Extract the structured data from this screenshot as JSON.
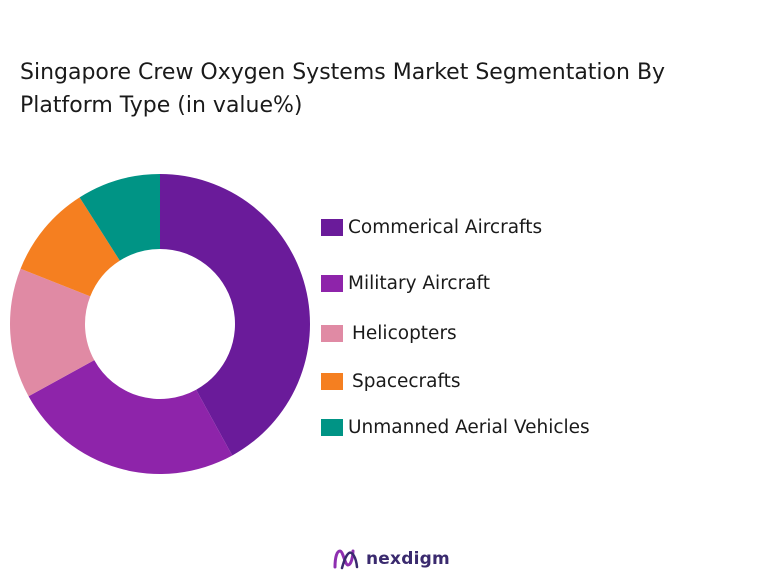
{
  "title_line1": " Singapore Crew Oxygen Systems Market Segmentation By",
  "title_line2": "Platform Type (in value%)",
  "logo_text": "nexdigm",
  "chart_data": {
    "type": "pie",
    "donut": true,
    "title": "Singapore Crew Oxygen Systems Market Segmentation By Platform Type (in value%)",
    "categories": [
      "Commerical Aircrafts",
      "Military Aircraft",
      "Helicopters",
      "Spacecrafts",
      "Unmanned Aerial Vehicles"
    ],
    "values": [
      42,
      25,
      14,
      10,
      9
    ],
    "colors": [
      "#6a1b9a",
      "#8e24aa",
      "#e08aa4",
      "#f57f20",
      "#009485"
    ],
    "legend": "right"
  }
}
